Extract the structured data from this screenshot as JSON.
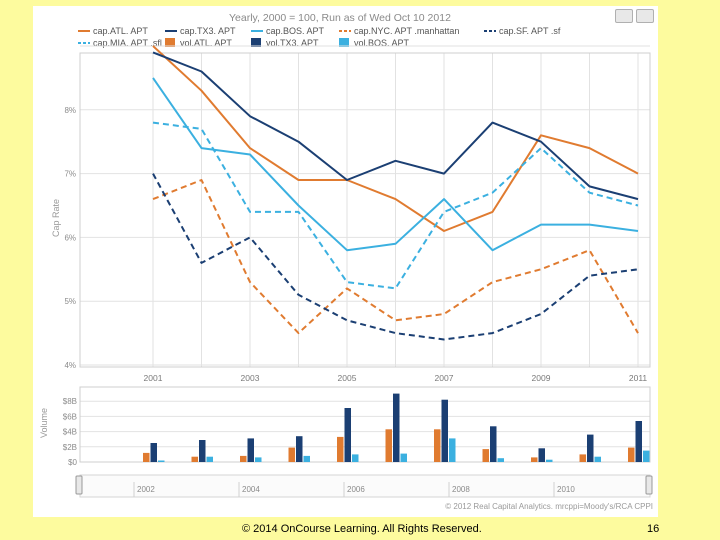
{
  "chart_data": [
    {
      "type": "line",
      "title": "Yearly, 2000 = 100, Run as of Wed Oct 10 2012",
      "ylabel": "Cap Rate",
      "xlabel": "",
      "x": [
        2001,
        2002,
        2003,
        2004,
        2005,
        2006,
        2007,
        2008,
        2009,
        2010,
        2011
      ],
      "x_tick_labels": [
        "2001",
        "2003",
        "2005",
        "2007",
        "2009",
        "2011"
      ],
      "y_tick_labels": [
        "4%",
        "5%",
        "6%",
        "7%",
        "8%"
      ],
      "ylim": [
        4,
        9.1
      ],
      "grid": true,
      "legend_position": "top",
      "series": [
        {
          "name": "cap.ATL. APT",
          "color": "#e07b30",
          "dash": false,
          "values": [
            9.0,
            8.3,
            7.4,
            6.9,
            6.9,
            6.6,
            6.1,
            6.4,
            7.6,
            7.4,
            7.0
          ]
        },
        {
          "name": "cap.TX3. APT",
          "color": "#1b3f73",
          "dash": false,
          "values": [
            8.9,
            8.6,
            7.9,
            7.5,
            6.9,
            7.2,
            7.0,
            7.8,
            7.5,
            6.8,
            6.6
          ]
        },
        {
          "name": "cap.BOS. APT",
          "color": "#3bb0e0",
          "dash": false,
          "values": [
            8.5,
            7.4,
            7.3,
            6.5,
            5.8,
            5.9,
            6.6,
            5.8,
            6.2,
            6.2,
            6.1
          ]
        },
        {
          "name": "cap.NYC. APT .manhattan",
          "color": "#e07b30",
          "dash": true,
          "values": [
            6.6,
            6.9,
            5.3,
            4.5,
            5.2,
            4.7,
            4.8,
            5.3,
            5.5,
            5.8,
            4.5
          ]
        },
        {
          "name": "cap.SF. APT .sf",
          "color": "#1b3f73",
          "dash": true,
          "values": [
            7.0,
            5.6,
            6.0,
            5.1,
            4.7,
            4.5,
            4.4,
            4.5,
            4.8,
            5.4,
            5.5
          ]
        },
        {
          "name": "cap.MIA. APT .sfl",
          "color": "#3bb0e0",
          "dash": true,
          "values": [
            7.8,
            7.7,
            6.4,
            6.4,
            5.3,
            5.2,
            6.4,
            6.7,
            7.4,
            6.7,
            6.5
          ]
        }
      ]
    },
    {
      "type": "bar",
      "ylabel": "Volume",
      "x": [
        2001,
        2002,
        2003,
        2004,
        2005,
        2006,
        2007,
        2008,
        2009,
        2010,
        2011
      ],
      "y_tick_labels": [
        "$0",
        "$2B",
        "$4B",
        "$6B",
        "$8B"
      ],
      "ylim": [
        0,
        9.5
      ],
      "series": [
        {
          "name": "vol.ATL. APT",
          "color": "#e07b30",
          "values": [
            1.2,
            0.7,
            0.8,
            1.9,
            3.3,
            4.3,
            4.3,
            1.7,
            0.6,
            1.0,
            1.9
          ]
        },
        {
          "name": "vol.TX3. APT",
          "color": "#1b3f73",
          "values": [
            2.5,
            2.9,
            3.1,
            3.4,
            7.1,
            9.0,
            8.2,
            4.7,
            1.8,
            3.6,
            5.4
          ]
        },
        {
          "name": "vol.BOS. APT",
          "color": "#3bb0e0",
          "values": [
            0.2,
            0.7,
            0.6,
            0.8,
            1.0,
            1.1,
            3.1,
            0.5,
            0.3,
            0.7,
            1.5
          ]
        }
      ]
    }
  ],
  "navigator": {
    "tick_labels": [
      "2002",
      "2004",
      "2006",
      "2008",
      "2010"
    ]
  },
  "credit": "© 2012 Real Capital Analytics. mrcppi=Moody's/RCA CPPI",
  "footer": {
    "copyright": "© 2014 OnCourse Learning. All Rights Reserved.",
    "page_number": "16"
  }
}
